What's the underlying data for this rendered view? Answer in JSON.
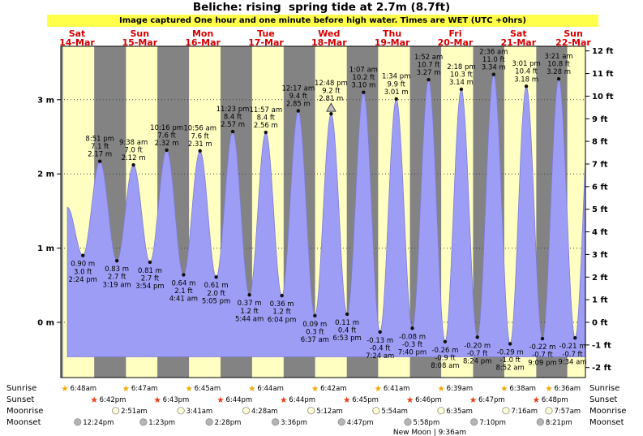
{
  "chart_data": {
    "type": "area",
    "title": "Beliche: rising  spring tide at 2.7m (8.7ft)",
    "subtitle": "Image captured One hour and one minute before high water. Times are WET (UTC +0hrs)",
    "days": [
      {
        "dow": "Sat",
        "date": "14-Mar"
      },
      {
        "dow": "Sun",
        "date": "15-Mar"
      },
      {
        "dow": "Mon",
        "date": "16-Mar"
      },
      {
        "dow": "Tue",
        "date": "17-Mar"
      },
      {
        "dow": "Wed",
        "date": "18-Mar"
      },
      {
        "dow": "Thu",
        "date": "19-Mar"
      },
      {
        "dow": "Fri",
        "date": "20-Mar"
      },
      {
        "dow": "Sat",
        "date": "21-Mar"
      },
      {
        "dow": "Sun",
        "date": "22-Mar"
      }
    ],
    "y_left": {
      "unit": "m",
      "ticks": [
        0,
        1,
        2,
        3
      ]
    },
    "y_right": {
      "unit": "ft",
      "min": -2,
      "max": 12
    },
    "ylim_m": [
      -0.74,
      3.72
    ],
    "grid": "dotted-horizontal",
    "tide_events": [
      {
        "kind": "low",
        "day": 0,
        "time": "2:24 pm",
        "m": 0.9,
        "ft": 3.0
      },
      {
        "kind": "high",
        "day": 0,
        "time": "8:51 pm",
        "m": 2.17,
        "ft": 7.1
      },
      {
        "kind": "low",
        "day": 1,
        "time": "3:19 am",
        "m": 0.83,
        "ft": 2.7
      },
      {
        "kind": "high",
        "day": 1,
        "time": "9:38 am",
        "m": 2.12,
        "ft": 7.0
      },
      {
        "kind": "low",
        "day": 1,
        "time": "3:54 pm",
        "m": 0.81,
        "ft": 2.7
      },
      {
        "kind": "high",
        "day": 1,
        "time": "10:16 pm",
        "m": 2.32,
        "ft": 7.6
      },
      {
        "kind": "low",
        "day": 2,
        "time": "4:41 am",
        "m": 0.64,
        "ft": 2.1
      },
      {
        "kind": "high",
        "day": 2,
        "time": "10:56 am",
        "m": 2.31,
        "ft": 7.6
      },
      {
        "kind": "low",
        "day": 2,
        "time": "5:05 pm",
        "m": 0.61,
        "ft": 2.0
      },
      {
        "kind": "high",
        "day": 2,
        "time": "11:23 pm",
        "m": 2.57,
        "ft": 8.4
      },
      {
        "kind": "low",
        "day": 3,
        "time": "5:44 am",
        "m": 0.37,
        "ft": 1.2
      },
      {
        "kind": "high",
        "day": 3,
        "time": "11:57 am",
        "m": 2.56,
        "ft": 8.4
      },
      {
        "kind": "low",
        "day": 3,
        "time": "6:04 pm",
        "m": 0.36,
        "ft": 1.2
      },
      {
        "kind": "high",
        "day": 4,
        "time": "12:17 am",
        "m": 2.85,
        "ft": 9.4
      },
      {
        "kind": "low",
        "day": 4,
        "time": "6:37 am",
        "m": 0.09,
        "ft": 0.3
      },
      {
        "kind": "high",
        "day": 4,
        "time": "12:48 pm",
        "m": 2.81,
        "ft": 9.2,
        "marker": true
      },
      {
        "kind": "low",
        "day": 4,
        "time": "6:53 pm",
        "m": 0.11,
        "ft": 0.4
      },
      {
        "kind": "high",
        "day": 5,
        "time": "1:07 am",
        "m": 3.1,
        "ft": 10.2
      },
      {
        "kind": "low",
        "day": 5,
        "time": "7:24 am",
        "m": -0.13,
        "ft": -0.4
      },
      {
        "kind": "high",
        "day": 5,
        "time": "1:34 pm",
        "m": 3.01,
        "ft": 9.9
      },
      {
        "kind": "low",
        "day": 5,
        "time": "7:40 pm",
        "m": -0.08,
        "ft": -0.3
      },
      {
        "kind": "high",
        "day": 6,
        "time": "1:52 am",
        "m": 3.27,
        "ft": 10.7
      },
      {
        "kind": "low",
        "day": 6,
        "time": "8:08 am",
        "m": -0.26,
        "ft": -0.9
      },
      {
        "kind": "high",
        "day": 6,
        "time": "2:18 pm",
        "m": 3.14,
        "ft": 10.3
      },
      {
        "kind": "low",
        "day": 6,
        "time": "8:24 pm",
        "m": -0.2,
        "ft": -0.7
      },
      {
        "kind": "high",
        "day": 7,
        "time": "2:36 am",
        "m": 3.34,
        "ft": 11.0
      },
      {
        "kind": "low",
        "day": 7,
        "time": "8:52 am",
        "m": -0.29,
        "ft": -1.0
      },
      {
        "kind": "high",
        "day": 7,
        "time": "3:01 pm",
        "m": 3.18,
        "ft": 10.4
      },
      {
        "kind": "low",
        "day": 7,
        "time": "9:09 pm",
        "m": -0.22,
        "ft": -0.7
      },
      {
        "kind": "high",
        "day": 8,
        "time": "3:21 am",
        "m": 3.28,
        "ft": 10.8
      },
      {
        "kind": "low",
        "day": 8,
        "time": "9:34 am",
        "m": -0.21,
        "ft": -0.7
      }
    ],
    "curve_edge_estimates": {
      "start": {
        "day": 0,
        "time": "8:30 am",
        "m": 1.55
      },
      "end": {
        "day": 8,
        "time": "3:43 pm",
        "m": 3.18
      }
    },
    "astro": {
      "rows": [
        {
          "label": "Sunrise",
          "icon": "sunrise-star-icon",
          "shape": "star",
          "color": "#f0a800",
          "entries": [
            {
              "day": 0,
              "time": "6:48am"
            },
            {
              "day": 1,
              "time": "6:47am"
            },
            {
              "day": 2,
              "time": "6:45am"
            },
            {
              "day": 3,
              "time": "6:44am"
            },
            {
              "day": 4,
              "time": "6:42am"
            },
            {
              "day": 5,
              "time": "6:41am"
            },
            {
              "day": 6,
              "time": "6:39am"
            },
            {
              "day": 7,
              "time": "6:38am"
            },
            {
              "day": 8,
              "time": "6:36am"
            }
          ]
        },
        {
          "label": "Sunset",
          "icon": "sunset-star-icon",
          "shape": "star",
          "color": "#e83a10",
          "entries": [
            {
              "day": 0,
              "time": "6:42pm"
            },
            {
              "day": 1,
              "time": "6:43pm"
            },
            {
              "day": 2,
              "time": "6:44pm"
            },
            {
              "day": 3,
              "time": "6:44pm"
            },
            {
              "day": 4,
              "time": "6:45pm"
            },
            {
              "day": 5,
              "time": "6:46pm"
            },
            {
              "day": 6,
              "time": "6:47pm"
            },
            {
              "day": 7,
              "time": "6:48pm"
            }
          ]
        },
        {
          "label": "Moonrise",
          "icon": "moonrise-icon",
          "shape": "circle",
          "color": "#ffffd6",
          "entries": [
            {
              "day": 1,
              "time": "2:51am"
            },
            {
              "day": 2,
              "time": "3:41am"
            },
            {
              "day": 3,
              "time": "4:28am"
            },
            {
              "day": 4,
              "time": "5:12am"
            },
            {
              "day": 5,
              "time": "5:54am"
            },
            {
              "day": 6,
              "time": "6:35am"
            },
            {
              "day": 7,
              "time": "7:16am"
            },
            {
              "day": 8,
              "time": "7:57am"
            }
          ]
        },
        {
          "label": "Moonset",
          "icon": "moonset-icon",
          "shape": "circle",
          "color": "#b5b5b5",
          "entries": [
            {
              "day": 0,
              "time": "12:24pm"
            },
            {
              "day": 1,
              "time": "1:23pm"
            },
            {
              "day": 2,
              "time": "2:28pm"
            },
            {
              "day": 3,
              "time": "3:36pm"
            },
            {
              "day": 4,
              "time": "4:47pm"
            },
            {
              "day": 5,
              "time": "5:58pm"
            },
            {
              "day": 6,
              "time": "7:10pm"
            },
            {
              "day": 7,
              "time": "8:21pm"
            }
          ]
        }
      ],
      "new_moon": "New Moon | 9:36am"
    },
    "colors": {
      "night": "#838383",
      "daylight": "#ffffc2",
      "banner_bg": "#ffff4a",
      "tide_fill": "#9d9df5",
      "tide_stroke": "#7d7dd8",
      "date_label": "#d40000",
      "grid": "#404040"
    }
  }
}
